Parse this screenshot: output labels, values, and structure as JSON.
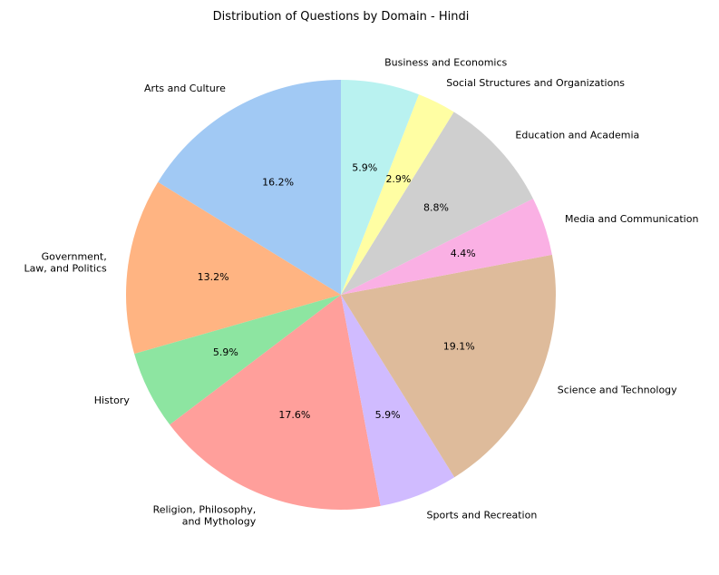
{
  "chart_data": {
    "type": "pie",
    "title": "Distribution of Questions by Domain - Hindi",
    "start_angle_deg": 90,
    "direction": "counterclockwise",
    "slices": [
      {
        "label": "Arts and Culture",
        "value": 16.2,
        "pct_label": "16.2%",
        "color": "#a1c9f4"
      },
      {
        "label": "Government,\nLaw, and Politics",
        "value": 13.2,
        "pct_label": "13.2%",
        "color": "#ffb482"
      },
      {
        "label": "History",
        "value": 5.9,
        "pct_label": "5.9%",
        "color": "#8de5a1"
      },
      {
        "label": "Religion, Philosophy,\nand Mythology",
        "value": 17.6,
        "pct_label": "17.6%",
        "color": "#ff9f9b"
      },
      {
        "label": "Sports and Recreation",
        "value": 5.9,
        "pct_label": "5.9%",
        "color": "#d0bbff"
      },
      {
        "label": "Science and Technology",
        "value": 19.1,
        "pct_label": "19.1%",
        "color": "#debb9b"
      },
      {
        "label": "Media and Communication",
        "value": 4.4,
        "pct_label": "4.4%",
        "color": "#fab0e4"
      },
      {
        "label": "Education and Academia",
        "value": 8.8,
        "pct_label": "8.8%",
        "color": "#cfcfcf"
      },
      {
        "label": "Social Structures and Organizations",
        "value": 2.9,
        "pct_label": "2.9%",
        "color": "#fffea3"
      },
      {
        "label": "Business and Economics",
        "value": 5.9,
        "pct_label": "5.9%",
        "color": "#b9f2f0"
      }
    ]
  }
}
